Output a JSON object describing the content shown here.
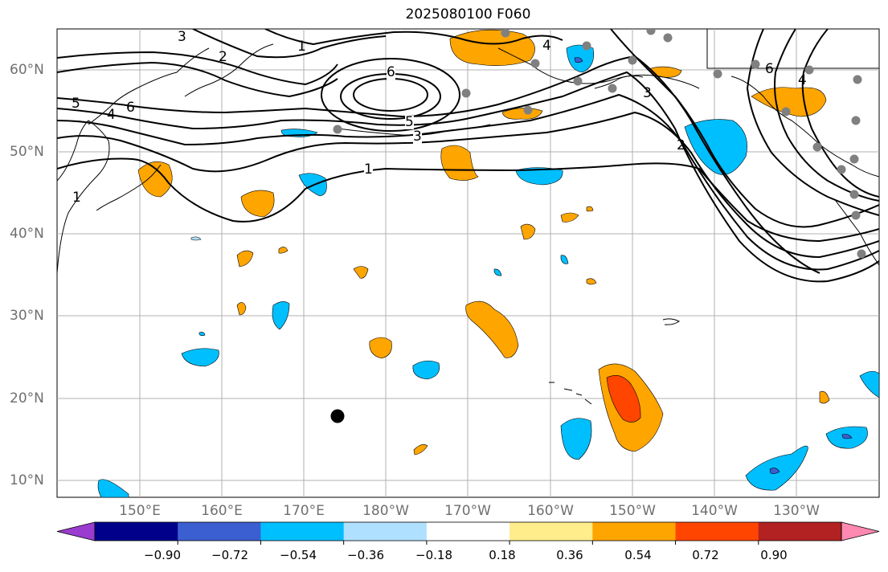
{
  "title": "2025080100 F060",
  "lat_labels": [
    "60°N",
    "50°N",
    "40°N",
    "30°N",
    "20°N",
    "10°N"
  ],
  "lon_labels": [
    "150°E",
    "160°E",
    "170°E",
    "180°W",
    "170°W",
    "160°W",
    "150°W",
    "140°W",
    "130°W"
  ],
  "contour_labels": [
    "1",
    "2",
    "3",
    "4",
    "5",
    "6"
  ],
  "colorbar": {
    "ticks": [
      "−0.90",
      "−0.72",
      "−0.54",
      "−0.36",
      "−0.18",
      "0.18",
      "0.36",
      "0.54",
      "0.72",
      "0.90"
    ],
    "colors": [
      "#9a3cd0",
      "#00008b",
      "#3b5fd0",
      "#00bfff",
      "#b0e0ff",
      "#ffffff",
      "#ffec8b",
      "#ffa500",
      "#ff4500",
      "#b22222",
      "#ff89b0"
    ]
  },
  "colors": {
    "grid": "#b0b0b0",
    "coast": "#000000",
    "station": "#808080",
    "contour": "#000000"
  }
}
